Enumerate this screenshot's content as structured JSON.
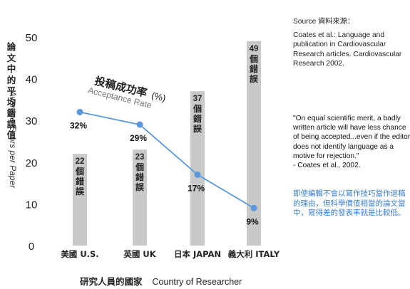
{
  "chart_data": {
    "type": "bar",
    "categories": [
      "美國 U.S.",
      "英國 UK",
      "日本 JAPAN",
      "義大利 ITALY"
    ],
    "series": [
      {
        "values": [
          22,
          23,
          37,
          49
        ]
      },
      {
        "values": [
          32,
          29,
          17,
          9
        ]
      }
    ],
    "bar_labels": [
      {
        "num": "22",
        "chars": [
          "個",
          "錯",
          "誤"
        ]
      },
      {
        "num": "23",
        "chars": [
          "個",
          "錯",
          "誤"
        ]
      },
      {
        "num": "37",
        "chars": [
          "個",
          "錯",
          "誤"
        ]
      },
      {
        "num": "49",
        "chars": [
          "個",
          "錯",
          "誤"
        ]
      }
    ],
    "line_labels": [
      "32%",
      "29%",
      "17%",
      "9%"
    ],
    "line_title_cn": "投稿成功率",
    "line_title_en": "Acceptance Rate",
    "line_title_unit": "(%)",
    "ylabel_cn": "論文中的平均錯誤值",
    "ylabel_en": "Average Errors per Paper",
    "xlabel_cn": "研究人員的國家",
    "xlabel_en": "Country of Researcher",
    "yticks": [
      "0",
      "10",
      "20",
      "30",
      "40",
      "50"
    ],
    "ylim": [
      0,
      50
    ],
    "colors": {
      "bar": "#c9c9c9",
      "line": "#5a98db",
      "note": "#3a7fd0"
    }
  },
  "source": {
    "title": "Source 資料來源：",
    "text": "Coates et al.: Language and publication in Cardiovascular Research articles. Cardiovascular Research 2002."
  },
  "quote": {
    "text": "\"On equal scientific merit, a badly written article will have less chance of being accepted...even if the editor does not identify language as a motive for rejection.\"",
    "cite": "- Coates et al., 2002."
  },
  "note_cn": "即使編輯不會以寫作技巧當作退稿的理由，但科學價值相當的論文當中，寫得差的發表率就是比較低。"
}
